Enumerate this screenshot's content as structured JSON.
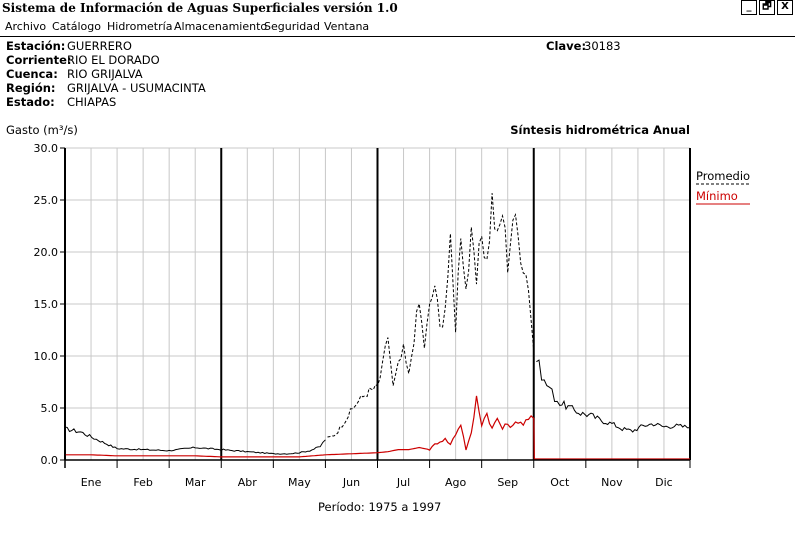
{
  "window": {
    "title": "Sistema de Información de Aguas Superficiales  versión 1.0",
    "buttons": [
      "_",
      "🗗",
      "X"
    ]
  },
  "menu": [
    "Archivo",
    "Catálogo",
    "Hidrometría",
    "Almacenamiento",
    "Seguridad",
    "Ventana"
  ],
  "station": {
    "fields": [
      {
        "label": "Estación:",
        "value": "GUERRERO"
      },
      {
        "label": "Corriente:",
        "value": "RIO EL DORADO"
      },
      {
        "label": "Cuenca:",
        "value": "RIO GRIJALVA"
      },
      {
        "label": "Región:",
        "value": "GRIJALVA - USUMACINTA"
      },
      {
        "label": "Estado:",
        "value": "CHIAPAS"
      }
    ],
    "clave_label": "Clave:",
    "clave_value": "30183"
  },
  "chart_data": {
    "type": "line",
    "title": "Síntesis hidrométrica   Anual",
    "ylabel": "Gasto",
    "ylabel_unit": "(m³/s)",
    "ylim": [
      0,
      30
    ],
    "yticks": [
      "0.0",
      "5.0",
      "10.0",
      "15.0",
      "20.0",
      "25.0",
      "30.0"
    ],
    "categories": [
      "Ene",
      "Feb",
      "Mar",
      "Abr",
      "May",
      "Jun",
      "Jul",
      "Ago",
      "Sep",
      "Oct",
      "Nov",
      "Dic"
    ],
    "x_unit": "month index (0 = start of Ene, 12 = end of Dic)",
    "legend_placement": "right",
    "series": [
      {
        "name": "Promedio",
        "color": "#000000",
        "style": "dashed (Jun-Sep), solid otherwise",
        "x": [
          0,
          0.3,
          0.6,
          1.0,
          1.5,
          2.0,
          2.5,
          3.0,
          3.5,
          4.0,
          4.3,
          4.5,
          4.7,
          4.9,
          5.0,
          5.2,
          5.4,
          5.6,
          5.8,
          6.0,
          6.1,
          6.2,
          6.3,
          6.4,
          6.5,
          6.6,
          6.7,
          6.8,
          6.9,
          7.0,
          7.1,
          7.2,
          7.3,
          7.4,
          7.5,
          7.6,
          7.7,
          7.8,
          7.9,
          8.0,
          8.1,
          8.2,
          8.3,
          8.4,
          8.5,
          8.6,
          8.7,
          8.8,
          8.9,
          9.0,
          9.1,
          9.2,
          9.3,
          9.4,
          9.5,
          9.7,
          9.9,
          10.1,
          10.3,
          10.5,
          10.7,
          10.9,
          11.1,
          11.3,
          11.5,
          11.7,
          11.9,
          12.0
        ],
        "y": [
          3.0,
          2.7,
          2.0,
          1.1,
          1.0,
          0.9,
          1.2,
          1.0,
          0.8,
          0.6,
          0.6,
          0.7,
          0.9,
          1.3,
          2.0,
          2.5,
          4.0,
          5.5,
          6.5,
          7.0,
          9.0,
          12.0,
          7.0,
          9.0,
          10.5,
          8.0,
          12.0,
          15.0,
          11.0,
          14.5,
          17.0,
          12.5,
          15.0,
          20.5,
          13.0,
          22.5,
          16.5,
          21.0,
          17.0,
          22.0,
          19.0,
          25.0,
          21.0,
          24.0,
          19.0,
          23.5,
          21.5,
          19.0,
          17.0,
          10.5,
          9.0,
          7.5,
          7.0,
          6.0,
          5.5,
          5.0,
          4.5,
          4.3,
          3.8,
          3.5,
          3.0,
          2.8,
          3.3,
          3.5,
          3.2,
          3.3,
          3.2,
          3.1
        ]
      },
      {
        "name": "Mínimo",
        "color": "#cc0000",
        "style": "solid",
        "x": [
          0,
          0.5,
          1.0,
          1.5,
          2.0,
          2.5,
          3.0,
          3.5,
          4.0,
          4.5,
          5.0,
          5.5,
          6.0,
          6.2,
          6.4,
          6.6,
          6.8,
          7.0,
          7.1,
          7.2,
          7.3,
          7.4,
          7.5,
          7.6,
          7.7,
          7.8,
          7.9,
          8.0,
          8.1,
          8.2,
          8.3,
          8.4,
          8.5,
          8.6,
          8.7,
          8.8,
          8.9,
          9.0,
          9.01,
          10.0,
          11.0,
          12.0
        ],
        "y": [
          0.5,
          0.5,
          0.4,
          0.4,
          0.4,
          0.4,
          0.3,
          0.3,
          0.3,
          0.3,
          0.5,
          0.6,
          0.7,
          0.8,
          1.0,
          1.0,
          1.2,
          1.0,
          1.5,
          1.8,
          2.0,
          1.5,
          2.5,
          3.5,
          1.0,
          2.5,
          6.0,
          3.5,
          4.5,
          3.0,
          4.0,
          3.0,
          3.5,
          3.2,
          3.8,
          3.5,
          4.0,
          4.0,
          0.1,
          0.1,
          0.1,
          0.1
        ]
      }
    ]
  },
  "period": {
    "label": "Período:",
    "value": "1975 a 1997"
  }
}
